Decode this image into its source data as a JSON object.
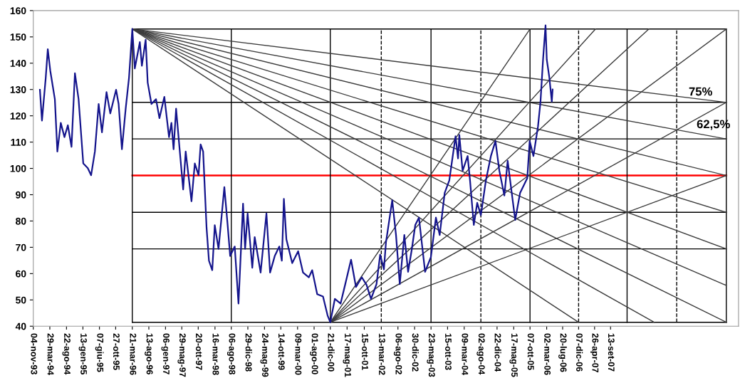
{
  "chart_data": {
    "type": "line",
    "xlim": [
      "1993-11-04",
      "2010-10-09"
    ],
    "ylim": [
      40,
      160
    ],
    "yticks": [
      40,
      50,
      60,
      70,
      80,
      90,
      100,
      110,
      120,
      130,
      140,
      150,
      160
    ],
    "xticks": [
      {
        "value": "1993-11-04",
        "label": "04-nov-93"
      },
      {
        "value": "1994-03-29",
        "label": "29-mar-94"
      },
      {
        "value": "1994-08-22",
        "label": "22-ago-94"
      },
      {
        "value": "1995-01-13",
        "label": "13-gen-95"
      },
      {
        "value": "1995-06-07",
        "label": "07-giu-95"
      },
      {
        "value": "1995-10-27",
        "label": "27-ott-95"
      },
      {
        "value": "1996-03-21",
        "label": "21-mar-96"
      },
      {
        "value": "1996-08-13",
        "label": "13-ago-96"
      },
      {
        "value": "1997-01-06",
        "label": "06-gen-97"
      },
      {
        "value": "1997-05-29",
        "label": "29-mag-97"
      },
      {
        "value": "1997-10-20",
        "label": "20-ott-97"
      },
      {
        "value": "1998-03-16",
        "label": "16-mar-98"
      },
      {
        "value": "1998-08-06",
        "label": "06-ago-98"
      },
      {
        "value": "1998-12-29",
        "label": "29-dic-98"
      },
      {
        "value": "1999-05-24",
        "label": "24-mag-99"
      },
      {
        "value": "1999-10-14",
        "label": "14-ott-99"
      },
      {
        "value": "2000-03-09",
        "label": "09-mar-00"
      },
      {
        "value": "2000-08-01",
        "label": "01-ago-00"
      },
      {
        "value": "2000-12-21",
        "label": "21-dic-00"
      },
      {
        "value": "2001-05-17",
        "label": "17-mag-01"
      },
      {
        "value": "2001-10-15",
        "label": "15-ott-01"
      },
      {
        "value": "2002-03-13",
        "label": "13-mar-02"
      },
      {
        "value": "2002-08-06",
        "label": "06-ago-02"
      },
      {
        "value": "2002-12-30",
        "label": "30-dic-02"
      },
      {
        "value": "2003-05-23",
        "label": "23-mag-03"
      },
      {
        "value": "2003-10-15",
        "label": "15-ott-03"
      },
      {
        "value": "2004-03-09",
        "label": "09-mar-04"
      },
      {
        "value": "2004-08-02",
        "label": "02-ago-04"
      },
      {
        "value": "2004-12-22",
        "label": "22-dic-04"
      },
      {
        "value": "2005-05-17",
        "label": "17-mag-05"
      },
      {
        "value": "2005-10-07",
        "label": "07-ott-05"
      },
      {
        "value": "2006-03-02",
        "label": "02-mar-06"
      },
      {
        "value": "2006-07-20",
        "label": "20-lug-06"
      },
      {
        "value": "2006-12-07",
        "label": "07-dic-06"
      },
      {
        "value": "2007-04-26",
        "label": "26-apr-07"
      },
      {
        "value": "2007-09-13",
        "label": "13-set-07"
      }
    ],
    "grid": false,
    "annotations": [
      {
        "text": "75%",
        "x": "2010-06-24",
        "y": 125.1
      },
      {
        "text": "62,5%",
        "x": "2010-06-24",
        "y": 111.2
      }
    ],
    "series": [
      {
        "color": "#000000",
        "x": [
          "1996-03-21",
          "2010-06-24"
        ],
        "values": [
          153,
          153
        ]
      },
      {
        "color": "#000000",
        "x": [
          "1996-03-21",
          "2010-06-24"
        ],
        "values": [
          125.1,
          125.1
        ]
      },
      {
        "color": "#000000",
        "x": [
          "1996-03-21",
          "2010-06-24"
        ],
        "values": [
          111.2,
          111.2
        ]
      },
      {
        "color": "#ff0000",
        "x": [
          "1996-03-21",
          "2010-06-24"
        ],
        "values": [
          97.3,
          97.3
        ]
      },
      {
        "color": "#000000",
        "x": [
          "1996-03-21",
          "2010-06-24"
        ],
        "values": [
          83.3,
          83.3
        ]
      },
      {
        "color": "#000000",
        "x": [
          "1996-03-21",
          "2010-06-24"
        ],
        "values": [
          69.4,
          69.4
        ]
      },
      {
        "color": "#000000",
        "x": [
          "1996-03-21",
          "2010-06-24"
        ],
        "values": [
          41.5,
          41.5
        ]
      },
      {
        "color": "#000000",
        "x": [
          "1996-03-21",
          "1996-03-21"
        ],
        "values": [
          41.5,
          153
        ]
      },
      {
        "color": "#000000",
        "x": [
          "1998-08-06",
          "1998-08-06"
        ],
        "values": [
          41.5,
          153
        ]
      },
      {
        "color": "#000000",
        "x": [
          "2000-12-21",
          "2000-12-21"
        ],
        "values": [
          41.5,
          153
        ]
      },
      {
        "color": "#000000",
        "x": [
          "2003-05-23",
          "2003-05-23"
        ],
        "values": [
          41.5,
          153
        ]
      },
      {
        "color": "#000000",
        "x": [
          "2005-10-07",
          "2005-10-07"
        ],
        "values": [
          41.5,
          153
        ]
      },
      {
        "color": "#000000",
        "x": [
          "2008-02-05",
          "2008-02-05"
        ],
        "values": [
          41.5,
          153
        ]
      },
      {
        "color": "#000000",
        "x": [
          "2010-06-24",
          "2010-06-24"
        ],
        "values": [
          41.5,
          153
        ]
      },
      {
        "color": "#000000",
        "line_style": "dashed",
        "x": [
          "2002-03-13",
          "2002-03-13"
        ],
        "values": [
          41.5,
          153
        ]
      },
      {
        "color": "#000000",
        "line_style": "dashed",
        "x": [
          "2004-08-02",
          "2004-08-02"
        ],
        "values": [
          41.5,
          153
        ]
      },
      {
        "color": "#000000",
        "line_style": "dashed",
        "x": [
          "2006-12-07",
          "2006-12-07"
        ],
        "values": [
          41.5,
          153
        ]
      },
      {
        "color": "#000000",
        "line_style": "dashed",
        "x": [
          "2009-04-15",
          "2009-04-15"
        ],
        "values": [
          41.5,
          153
        ]
      },
      {
        "color": "#3c3c3c",
        "x": [
          "1996-03-21",
          "2010-06-24"
        ],
        "values": [
          153,
          125.1
        ]
      },
      {
        "color": "#3c3c3c",
        "x": [
          "1996-03-21",
          "2010-06-24"
        ],
        "values": [
          153,
          111.2
        ]
      },
      {
        "color": "#3c3c3c",
        "x": [
          "1996-03-21",
          "2010-06-24"
        ],
        "values": [
          153,
          97.3
        ]
      },
      {
        "color": "#3c3c3c",
        "x": [
          "1996-03-21",
          "2010-06-24"
        ],
        "values": [
          153,
          83.3
        ]
      },
      {
        "color": "#3c3c3c",
        "x": [
          "1996-03-21",
          "2010-06-24"
        ],
        "values": [
          153,
          69.4
        ]
      },
      {
        "color": "#3c3c3c",
        "x": [
          "1996-03-21",
          "2010-06-24"
        ],
        "values": [
          153,
          55.5
        ]
      },
      {
        "color": "#3c3c3c",
        "x": [
          "1996-03-21",
          "2010-06-24"
        ],
        "values": [
          153,
          41.5
        ]
      },
      {
        "color": "#3c3c3c",
        "x": [
          "1996-03-21",
          "2008-10-01"
        ],
        "values": [
          153,
          41.5
        ]
      },
      {
        "color": "#3c3c3c",
        "x": [
          "1996-03-21",
          "2006-12-07"
        ],
        "values": [
          153,
          41.5
        ]
      },
      {
        "color": "#3c3c3c",
        "x": [
          "2000-12-21",
          "2005-10-07"
        ],
        "values": [
          41.5,
          153
        ]
      },
      {
        "color": "#3c3c3c",
        "x": [
          "2000-12-21",
          "2007-05-04"
        ],
        "values": [
          41.5,
          153
        ]
      },
      {
        "color": "#3c3c3c",
        "x": [
          "2000-12-21",
          "2008-08-14"
        ],
        "values": [
          41.5,
          153
        ]
      },
      {
        "color": "#3c3c3c",
        "x": [
          "2000-12-21",
          "2010-06-24"
        ],
        "values": [
          41.5,
          153
        ]
      },
      {
        "color": "#3c3c3c",
        "x": [
          "2000-12-21",
          "2010-06-24"
        ],
        "values": [
          41.5,
          125.1
        ]
      },
      {
        "color": "#3c3c3c",
        "x": [
          "2000-12-21",
          "2010-06-24"
        ],
        "values": [
          41.5,
          97.3
        ]
      },
      {
        "color": "#14148c",
        "x": [
          "1994-01-01",
          "1994-01-19",
          "1994-02-21",
          "1994-03-11",
          "1994-04-02",
          "1994-05-12",
          "1994-06-03",
          "1994-07-03",
          "1994-08-04",
          "1994-09-03",
          "1994-10-05",
          "1994-11-04",
          "1994-12-06",
          "1995-01-16",
          "1995-02-25",
          "1995-03-26",
          "1995-04-28",
          "1995-05-31",
          "1995-06-29",
          "1995-08-08",
          "1995-09-10",
          "1995-10-31",
          "1995-11-22",
          "1995-12-21",
          "1996-01-23",
          "1996-02-21",
          "1996-03-21",
          "1996-04-12",
          "1996-05-26",
          "1996-06-13",
          "1996-07-16",
          "1996-08-03",
          "1996-09-05",
          "1996-10-15",
          "1996-11-14",
          "1996-12-27",
          "1997-02-06",
          "1997-02-27",
          "1997-03-18",
          "1997-04-09",
          "1997-05-08",
          "1997-06-10",
          "1997-07-02",
          "1997-08-22",
          "1997-09-20",
          "1997-10-23",
          "1997-11-10",
          "1997-12-02",
          "1998-01-01",
          "1998-01-22",
          "1998-02-20",
          "1998-03-14",
          "1998-04-16",
          "1998-06-06",
          "1998-07-05",
          "1998-07-27",
          "1998-09-05",
          "1998-10-08",
          "1998-11-17",
          "1998-12-05",
          "1998-12-27",
          "1999-02-06",
          "1999-02-27",
          "1999-04-20",
          "1999-06-10",
          "1999-07-12",
          "1999-08-22",
          "1999-10-01",
          "1999-10-23",
          "1999-11-10",
          "1999-12-02",
          "2000-01-22",
          "2000-03-14",
          "2000-04-26",
          "2000-06-16",
          "2000-07-15",
          "2000-08-28",
          "2000-10-18",
          "2000-11-27",
          "2000-12-21",
          "2001-01-30",
          "2001-03-21",
          "2001-04-30",
          "2001-06-21",
          "2001-08-03",
          "2001-09-23",
          "2001-11-03",
          "2001-12-13",
          "2002-01-30",
          "2002-03-03",
          "2002-04-05",
          "2002-04-23",
          "2002-06-17",
          "2002-07-20",
          "2002-08-22",
          "2002-10-01",
          "2002-11-03",
          "2002-12-05",
          "2003-01-05",
          "2003-02-06",
          "2003-04-01",
          "2003-05-22",
          "2003-07-05",
          "2003-08-07",
          "2003-09-20",
          "2003-10-30",
          "2003-12-24",
          "2004-01-15",
          "2004-01-26",
          "2004-02-24",
          "2004-04-08",
          "2004-04-29",
          "2004-06-01",
          "2004-07-01",
          "2004-08-02",
          "2004-09-15",
          "2004-10-29",
          "2004-12-08",
          "2005-01-11",
          "2005-02-24",
          "2005-03-25",
          "2005-04-27",
          "2005-05-30",
          "2005-07-12",
          "2005-09-13",
          "2005-10-04",
          "2005-11-06",
          "2005-12-16",
          "2006-01-07",
          "2006-01-29",
          "2006-02-20",
          "2006-03-03",
          "2006-03-25",
          "2006-04-16",
          "2006-04-23"
        ],
        "values": [
          129.9,
          118.2,
          134.4,
          145.3,
          137.1,
          126.3,
          106.4,
          117.3,
          111.9,
          116.4,
          108.2,
          136.2,
          126.3,
          101.9,
          100.1,
          97.4,
          106.4,
          124.5,
          113.7,
          129.0,
          120.9,
          129.9,
          124.5,
          107.3,
          122.7,
          134.4,
          153.0,
          138.0,
          148.0,
          139.0,
          148.9,
          132.6,
          124.5,
          126.3,
          119.1,
          127.2,
          111.9,
          117.3,
          107.3,
          122.7,
          108.2,
          92.0,
          106.4,
          87.5,
          101.9,
          97.4,
          109.1,
          106.4,
          77.5,
          64.9,
          61.3,
          78.4,
          69.4,
          92.9,
          78.4,
          66.7,
          70.3,
          48.6,
          86.6,
          69.4,
          82.9,
          62.2,
          73.9,
          60.4,
          82.9,
          60.4,
          66.7,
          70.3,
          64.9,
          88.4,
          73.0,
          64.0,
          68.5,
          60.4,
          58.6,
          61.3,
          52.2,
          51.3,
          44.1,
          41.5,
          50.4,
          48.6,
          55.8,
          65.3,
          54.9,
          58.6,
          55.8,
          50.4,
          56.0,
          67.2,
          61.6,
          71.9,
          87.9,
          74.7,
          56.0,
          74.7,
          60.7,
          69.1,
          78.5,
          81.3,
          60.7,
          66.3,
          81.3,
          74.7,
          90.7,
          95.4,
          112.2,
          103.8,
          112.7,
          99.1,
          104.7,
          95.4,
          78.5,
          86.9,
          82.2,
          95.4,
          104.7,
          110.4,
          99.1,
          89.7,
          102.9,
          91.6,
          80.4,
          90.7,
          96.3,
          110.4,
          104.7,
          116.0,
          125.4,
          141.3,
          154.4,
          141.3,
          134.7,
          125.4,
          130.0
        ]
      }
    ]
  }
}
